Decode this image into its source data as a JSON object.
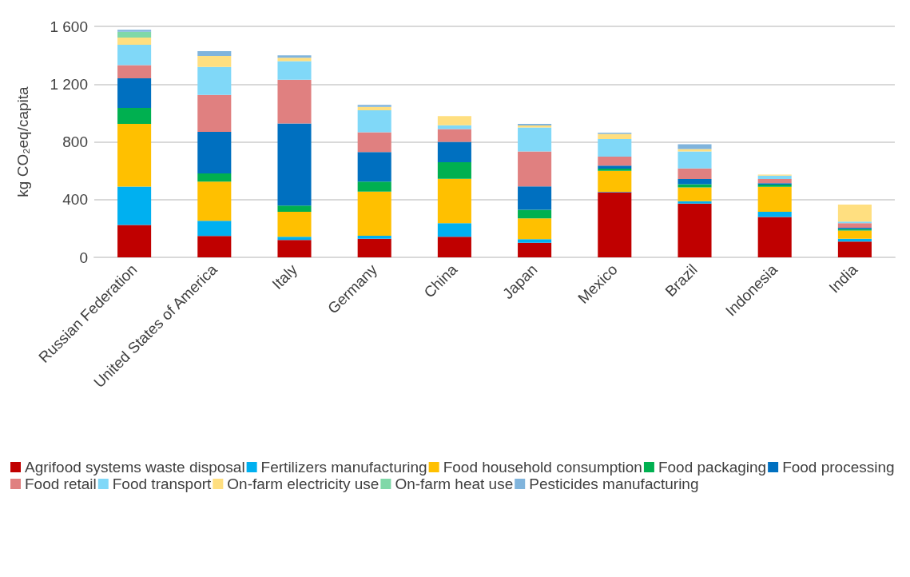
{
  "chart_data": {
    "type": "bar",
    "stacked": true,
    "ylabel": "kg CO₂eq/capita",
    "ylim": [
      0,
      1600
    ],
    "yticks": [
      0,
      400,
      800,
      {
        "value": 1200,
        "label": "1 200"
      },
      {
        "value": 1600,
        "label": "1 600"
      }
    ],
    "grid": "y",
    "legend": "bottom",
    "categories": [
      "Russian Federation",
      "United States of America",
      "Italy",
      "Germany",
      "China",
      "Japan",
      "Mexico",
      "Brazil",
      "Indonesia",
      "India"
    ],
    "series": [
      {
        "name": "Agrifood systems waste disposal",
        "color": "#c00000",
        "values": [
          224,
          148,
          120,
          129,
          143,
          101,
          451,
          372,
          280,
          110
        ]
      },
      {
        "name": "Fertilizers manufacturing",
        "color": "#00b0f0",
        "values": [
          266,
          105,
          23,
          21,
          93,
          25,
          3,
          17,
          35,
          19
        ]
      },
      {
        "name": "Food household consumption",
        "color": "#ffc000",
        "values": [
          435,
          272,
          172,
          306,
          308,
          144,
          145,
          96,
          173,
          57
        ]
      },
      {
        "name": "Food packaging",
        "color": "#00b050",
        "values": [
          110,
          56,
          44,
          69,
          115,
          59,
          15,
          22,
          16,
          10
        ]
      },
      {
        "name": "Food processing",
        "color": "#0070c0",
        "values": [
          205,
          288,
          568,
          204,
          141,
          163,
          21,
          35,
          10,
          9
        ]
      },
      {
        "name": "Food retail",
        "color": "#e08080",
        "values": [
          91,
          256,
          303,
          138,
          88,
          241,
          62,
          74,
          28,
          32
        ]
      },
      {
        "name": "Food transport",
        "color": "#80d8f8",
        "values": [
          141,
          194,
          129,
          151,
          27,
          167,
          123,
          118,
          24,
          11
        ]
      },
      {
        "name": "On-farm electricity use",
        "color": "#ffdf80",
        "values": [
          50,
          76,
          24,
          24,
          64,
          13,
          35,
          16,
          7,
          117
        ]
      },
      {
        "name": "On-farm heat use",
        "color": "#80d8a8",
        "values": [
          40,
          null,
          null,
          null,
          null,
          null,
          null,
          null,
          null,
          null
        ]
      },
      {
        "name": "Pesticides manufacturing",
        "color": "#80b4dc",
        "values": [
          14,
          34,
          17,
          14,
          null,
          11,
          8,
          34,
          null,
          null
        ]
      }
    ]
  }
}
